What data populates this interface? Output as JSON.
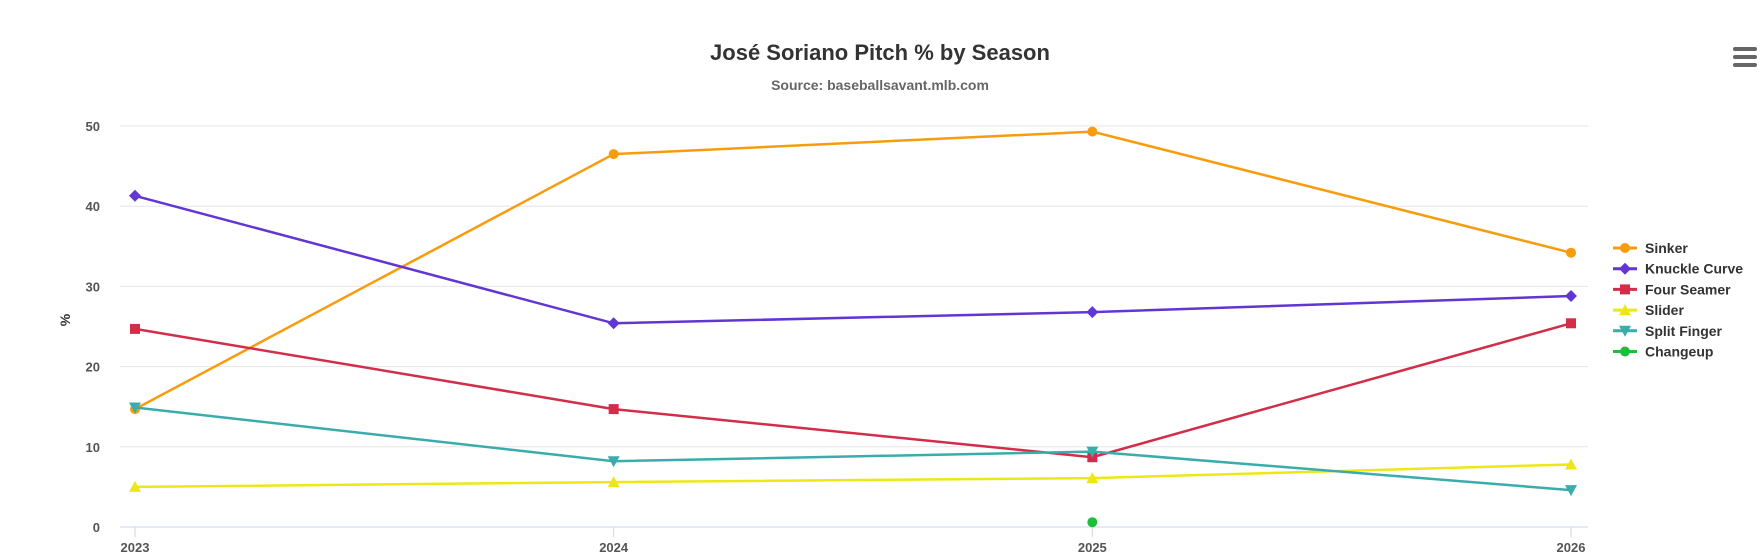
{
  "chart_data": {
    "type": "line",
    "title": "José Soriano Pitch % by Season",
    "subtitle": "Source: baseballsavant.mlb.com",
    "xlabel": "",
    "ylabel": "%",
    "categories": [
      "2023",
      "2024",
      "2025",
      "2026"
    ],
    "ylim": [
      0,
      50
    ],
    "yticks": [
      0,
      10,
      20,
      30,
      40,
      50
    ],
    "grid": true,
    "legend": "right",
    "series": [
      {
        "name": "Sinker",
        "color": "#f89c0e",
        "marker": "circle",
        "values": [
          14.7,
          46.5,
          49.3,
          34.2
        ]
      },
      {
        "name": "Knuckle Curve",
        "color": "#6236d4",
        "marker": "diamond",
        "values": [
          41.3,
          25.4,
          26.8,
          28.8
        ]
      },
      {
        "name": "Four Seamer",
        "color": "#d22d49",
        "marker": "square",
        "values": [
          24.7,
          14.7,
          8.7,
          25.4
        ]
      },
      {
        "name": "Slider",
        "color": "#eee716",
        "marker": "triangle",
        "values": [
          5.0,
          5.6,
          6.1,
          7.8
        ]
      },
      {
        "name": "Split Finger",
        "color": "#3bacac",
        "marker": "triangle-down",
        "values": [
          14.9,
          8.2,
          9.4,
          4.6
        ]
      },
      {
        "name": "Changeup",
        "color": "#1dbe3a",
        "marker": "circle",
        "values": [
          null,
          null,
          0.6,
          null
        ]
      }
    ]
  },
  "menu_icon": "hamburger-menu-icon"
}
